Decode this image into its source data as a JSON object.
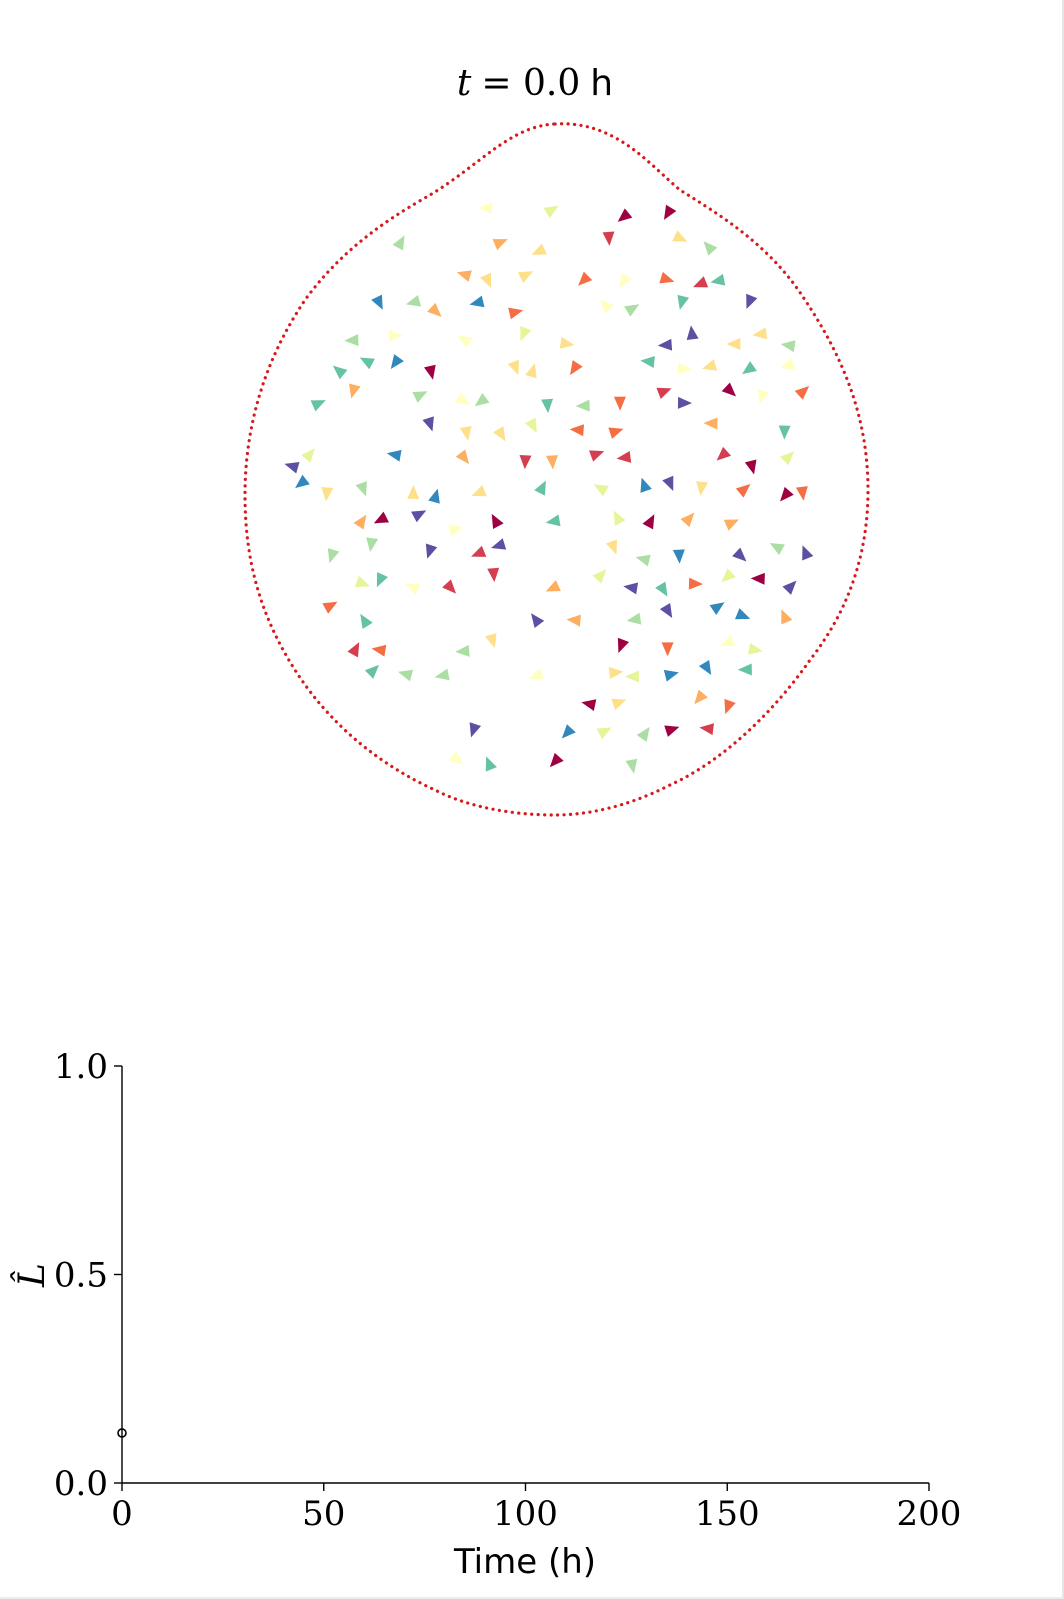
{
  "title": {
    "var": "t",
    "eq": "= 0.0",
    "unit": "h"
  },
  "colors": {
    "boundary": "#d7191c",
    "axis": "#000000",
    "palette": [
      "#9e0142",
      "#d53e4f",
      "#f46d43",
      "#fdae61",
      "#fee08b",
      "#ffffbf",
      "#e6f598",
      "#abdda4",
      "#66c2a5",
      "#3288bd",
      "#5e4fa2"
    ]
  },
  "colormap": "Spectral",
  "chart_data": [
    {
      "type": "scatter",
      "title": "t = 0.0 h",
      "marker": "triangle",
      "boundary": "closed dotted curve",
      "grid": false,
      "legend": "none",
      "x": [],
      "y": []
    },
    {
      "type": "line",
      "xlabel": "Time (h)",
      "ylabel": "L̂",
      "xlim": [
        0,
        200
      ],
      "ylim": [
        0,
        1
      ],
      "xticks": [
        "0",
        "50",
        "100",
        "150",
        "200"
      ],
      "yticks": [
        "0.0",
        "0.5",
        "1.0"
      ],
      "grid": false,
      "legend": "none",
      "series": [
        {
          "x": [
            0
          ],
          "y": [
            0.12
          ]
        }
      ]
    }
  ]
}
